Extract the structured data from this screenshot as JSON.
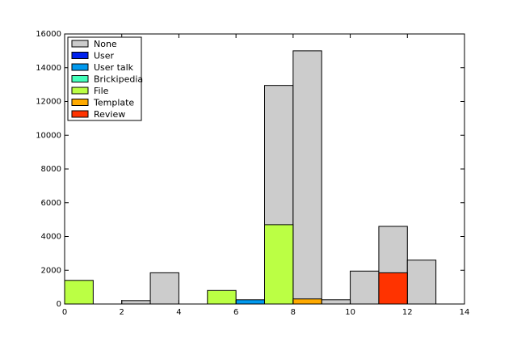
{
  "chart_data": {
    "type": "histogram",
    "bins": [
      0,
      1,
      2,
      3,
      4,
      5,
      6,
      7,
      8,
      9,
      10,
      11,
      12,
      13,
      14
    ],
    "series": [
      {
        "name": "None",
        "color": "#cccccc",
        "values": [
          0,
          0,
          200,
          1850,
          0,
          0,
          0,
          12950,
          15000,
          250,
          1950,
          4600,
          2600,
          0
        ]
      },
      {
        "name": "User",
        "color": "#0022ee",
        "values": [
          0,
          0,
          0,
          0,
          0,
          0,
          0,
          0,
          0,
          0,
          0,
          0,
          0,
          0
        ]
      },
      {
        "name": "User talk",
        "color": "#0099ee",
        "values": [
          0,
          0,
          0,
          0,
          0,
          0,
          250,
          0,
          0,
          0,
          0,
          0,
          0,
          0
        ]
      },
      {
        "name": "Brickipedia",
        "color": "#44ffbb",
        "values": [
          0,
          0,
          0,
          0,
          0,
          0,
          0,
          0,
          0,
          0,
          0,
          0,
          0,
          0
        ]
      },
      {
        "name": "File",
        "color": "#bbff44",
        "values": [
          1400,
          0,
          0,
          0,
          0,
          800,
          0,
          4700,
          0,
          0,
          0,
          0,
          0,
          0
        ]
      },
      {
        "name": "Template",
        "color": "#ffaa00",
        "values": [
          0,
          0,
          0,
          0,
          0,
          0,
          0,
          0,
          300,
          0,
          0,
          0,
          0,
          0
        ]
      },
      {
        "name": "Review",
        "color": "#ff3300",
        "values": [
          0,
          0,
          0,
          0,
          0,
          0,
          0,
          0,
          0,
          0,
          0,
          1850,
          0,
          0
        ]
      }
    ],
    "xlim": [
      0,
      14
    ],
    "xticks": [
      0,
      2,
      4,
      6,
      8,
      10,
      12,
      14
    ],
    "ylim": [
      0,
      16000
    ],
    "yticks": [
      0,
      2000,
      4000,
      6000,
      8000,
      10000,
      12000,
      14000,
      16000
    ],
    "legend": "upper left"
  }
}
